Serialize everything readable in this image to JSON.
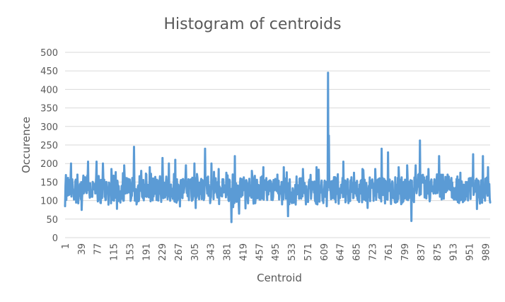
{
  "chart_data": {
    "type": "line",
    "title": "Histogram of centroids",
    "xlabel": "Centroid",
    "ylabel": "Occurence",
    "xlim": [
      1,
      1000
    ],
    "ylim": [
      0,
      500
    ],
    "y_ticks": [
      0,
      50,
      100,
      150,
      200,
      250,
      300,
      350,
      400,
      450,
      500
    ],
    "x_ticks": [
      1,
      39,
      77,
      115,
      153,
      191,
      229,
      267,
      305,
      343,
      381,
      419,
      457,
      495,
      533,
      571,
      609,
      647,
      685,
      723,
      761,
      799,
      837,
      875,
      913,
      951,
      989
    ],
    "grid": "horizontal",
    "legend": "none",
    "colors": {
      "series": "#5b9bd5",
      "grid": "#d9d9d9",
      "text": "#595959"
    },
    "series_baseline": 130,
    "series_noise_range": [
      85,
      175
    ],
    "series_peaks": [
      {
        "x": 1,
        "y": 85
      },
      {
        "x": 15,
        "y": 200
      },
      {
        "x": 30,
        "y": 170
      },
      {
        "x": 40,
        "y": 75
      },
      {
        "x": 55,
        "y": 205
      },
      {
        "x": 75,
        "y": 205
      },
      {
        "x": 90,
        "y": 200
      },
      {
        "x": 110,
        "y": 185
      },
      {
        "x": 140,
        "y": 195
      },
      {
        "x": 163,
        "y": 245
      },
      {
        "x": 180,
        "y": 180
      },
      {
        "x": 200,
        "y": 190
      },
      {
        "x": 230,
        "y": 215
      },
      {
        "x": 245,
        "y": 200
      },
      {
        "x": 260,
        "y": 210
      },
      {
        "x": 285,
        "y": 195
      },
      {
        "x": 305,
        "y": 200
      },
      {
        "x": 330,
        "y": 240
      },
      {
        "x": 345,
        "y": 200
      },
      {
        "x": 362,
        "y": 185
      },
      {
        "x": 380,
        "y": 175
      },
      {
        "x": 392,
        "y": 42
      },
      {
        "x": 400,
        "y": 220
      },
      {
        "x": 410,
        "y": 65
      },
      {
        "x": 440,
        "y": 180
      },
      {
        "x": 467,
        "y": 190
      },
      {
        "x": 500,
        "y": 170
      },
      {
        "x": 515,
        "y": 190
      },
      {
        "x": 525,
        "y": 58
      },
      {
        "x": 560,
        "y": 185
      },
      {
        "x": 592,
        "y": 190
      },
      {
        "x": 619,
        "y": 445
      },
      {
        "x": 621,
        "y": 275
      },
      {
        "x": 640,
        "y": 160
      },
      {
        "x": 655,
        "y": 205
      },
      {
        "x": 680,
        "y": 175
      },
      {
        "x": 700,
        "y": 185
      },
      {
        "x": 730,
        "y": 185
      },
      {
        "x": 745,
        "y": 240
      },
      {
        "x": 760,
        "y": 230
      },
      {
        "x": 785,
        "y": 190
      },
      {
        "x": 805,
        "y": 195
      },
      {
        "x": 815,
        "y": 45
      },
      {
        "x": 825,
        "y": 195
      },
      {
        "x": 835,
        "y": 262
      },
      {
        "x": 855,
        "y": 185
      },
      {
        "x": 880,
        "y": 220
      },
      {
        "x": 900,
        "y": 170
      },
      {
        "x": 930,
        "y": 175
      },
      {
        "x": 960,
        "y": 225
      },
      {
        "x": 983,
        "y": 220
      },
      {
        "x": 995,
        "y": 190
      },
      {
        "x": 1000,
        "y": 95
      }
    ]
  }
}
